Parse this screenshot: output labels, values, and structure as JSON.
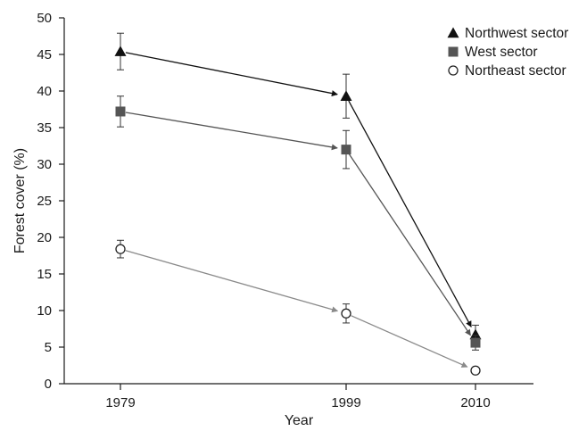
{
  "chart_data": {
    "type": "line",
    "title": "",
    "xlabel": "Year",
    "ylabel": "Forest cover (%)",
    "categories": [
      "1979",
      "1999",
      "2010"
    ],
    "ylim": [
      0,
      50
    ],
    "yticks": [
      0,
      5,
      10,
      15,
      20,
      25,
      30,
      35,
      40,
      45,
      50
    ],
    "grid": false,
    "legend_position": "top-right",
    "series": [
      {
        "name": "Northwest sector",
        "marker": "triangle",
        "color": "#111111",
        "values": [
          45.4,
          39.3,
          6.7
        ],
        "errors": [
          2.5,
          3.0,
          1.3
        ]
      },
      {
        "name": "West sector",
        "marker": "square",
        "color": "#555555",
        "values": [
          37.2,
          32.0,
          5.6
        ],
        "errors": [
          2.1,
          2.6,
          1.0
        ]
      },
      {
        "name": "Northeast sector",
        "marker": "open-circle",
        "color": "#8a8a8a",
        "values": [
          18.4,
          9.6,
          1.8
        ],
        "errors": [
          1.2,
          1.3,
          0
        ]
      }
    ]
  }
}
